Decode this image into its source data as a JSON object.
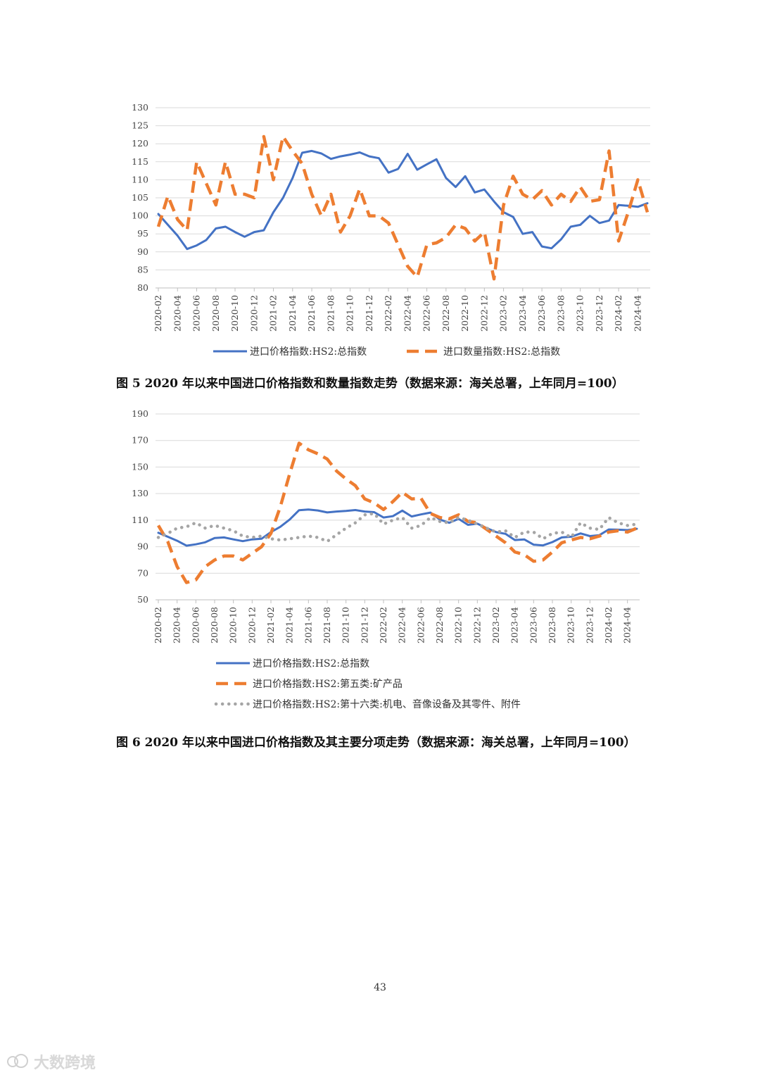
{
  "chart_data": [
    {
      "type": "line",
      "title": "",
      "xlabel": "",
      "ylabel": "",
      "ylim": [
        80,
        130
      ],
      "yticks": [
        80,
        85,
        90,
        95,
        100,
        105,
        110,
        115,
        120,
        125,
        130
      ],
      "grid": true,
      "legend_position": "bottom",
      "x": [
        "2020-02",
        "2020-03",
        "2020-04",
        "2020-05",
        "2020-06",
        "2020-07",
        "2020-08",
        "2020-09",
        "2020-10",
        "2020-11",
        "2020-12",
        "2021-01",
        "2021-02",
        "2021-03",
        "2021-04",
        "2021-05",
        "2021-06",
        "2021-07",
        "2021-08",
        "2021-09",
        "2021-10",
        "2021-11",
        "2021-12",
        "2022-01",
        "2022-02",
        "2022-03",
        "2022-04",
        "2022-05",
        "2022-06",
        "2022-07",
        "2022-08",
        "2022-09",
        "2022-10",
        "2022-11",
        "2022-12",
        "2023-01",
        "2023-02",
        "2023-03",
        "2023-04",
        "2023-05",
        "2023-06",
        "2023-07",
        "2023-08",
        "2023-09",
        "2023-10",
        "2023-11",
        "2023-12",
        "2024-01",
        "2024-02",
        "2024-03",
        "2024-04",
        "2024-05"
      ],
      "x_tick_labels": [
        "2020-02",
        "2020-04",
        "2020-06",
        "2020-08",
        "2020-10",
        "2020-12",
        "2021-02",
        "2021-04",
        "2021-06",
        "2021-08",
        "2021-10",
        "2021-12",
        "2022-02",
        "2022-04",
        "2022-06",
        "2022-08",
        "2022-10",
        "2022-12",
        "2023-02",
        "2023-04",
        "2023-06",
        "2023-08",
        "2023-10",
        "2023-12",
        "2024-02",
        "2024-04"
      ],
      "series": [
        {
          "name": "进口价格指数:HS2:总指数",
          "style": "solid",
          "color": "#4472C4",
          "values": [
            100.5,
            97.5,
            94.5,
            90.8,
            91.8,
            93.3,
            96.5,
            97.0,
            95.5,
            94.2,
            95.5,
            96.0,
            101.0,
            105.0,
            110.5,
            117.5,
            118.0,
            117.3,
            115.8,
            116.5,
            117.0,
            117.6,
            116.5,
            116.0,
            112.0,
            113.0,
            117.2,
            112.8,
            114.3,
            115.7,
            110.5,
            108.0,
            111.0,
            106.5,
            107.3,
            104.0,
            101.0,
            99.7,
            95.0,
            95.5,
            91.5,
            91.0,
            93.5,
            97.0,
            97.5,
            100.0,
            98.0,
            98.7,
            103.0,
            102.8,
            102.5,
            103.5
          ]
        },
        {
          "name": "进口数量指数:HS2:总指数",
          "style": "dashed",
          "color": "#ED7D31",
          "values": [
            97.0,
            105.5,
            99.0,
            96.0,
            115.0,
            109.0,
            103.0,
            115.0,
            106.0,
            106.0,
            105.0,
            122.0,
            110.0,
            122.0,
            118.0,
            114.5,
            106.0,
            100.0,
            106.0,
            95.5,
            100.0,
            107.5,
            100.0,
            100.0,
            98.0,
            92.0,
            86.0,
            83.0,
            92.0,
            92.5,
            94.0,
            97.5,
            96.5,
            93.0,
            95.5,
            82.5,
            103.0,
            111.0,
            106.0,
            104.5,
            107.0,
            103.0,
            106.0,
            104.0,
            108.0,
            104.0,
            104.5,
            118.0,
            93.0,
            101.0,
            110.0,
            101.0
          ]
        }
      ],
      "caption": "图 5 2020 年以来中国进口价格指数和数量指数走势（数据来源：海关总署，上年同月=100）"
    },
    {
      "type": "line",
      "title": "",
      "xlabel": "",
      "ylabel": "",
      "ylim": [
        50,
        190
      ],
      "yticks": [
        50,
        70,
        90,
        110,
        130,
        150,
        170,
        190
      ],
      "grid": true,
      "legend_position": "bottom",
      "x": [
        "2020-02",
        "2020-03",
        "2020-04",
        "2020-05",
        "2020-06",
        "2020-07",
        "2020-08",
        "2020-09",
        "2020-10",
        "2020-11",
        "2020-12",
        "2021-01",
        "2021-02",
        "2021-03",
        "2021-04",
        "2021-05",
        "2021-06",
        "2021-07",
        "2021-08",
        "2021-09",
        "2021-10",
        "2021-11",
        "2021-12",
        "2022-01",
        "2022-02",
        "2022-03",
        "2022-04",
        "2022-05",
        "2022-06",
        "2022-07",
        "2022-08",
        "2022-09",
        "2022-10",
        "2022-11",
        "2022-12",
        "2023-01",
        "2023-02",
        "2023-03",
        "2023-04",
        "2023-05",
        "2023-06",
        "2023-07",
        "2023-08",
        "2023-09",
        "2023-10",
        "2023-11",
        "2023-12",
        "2024-01",
        "2024-02",
        "2024-03",
        "2024-04",
        "2024-05"
      ],
      "x_tick_labels": [
        "2020-02",
        "2020-04",
        "2020-06",
        "2020-08",
        "2020-10",
        "2020-12",
        "2021-02",
        "2021-04",
        "2021-06",
        "2021-08",
        "2021-10",
        "2021-12",
        "2022-02",
        "2022-04",
        "2022-06",
        "2022-08",
        "2022-10",
        "2022-12",
        "2023-02",
        "2023-04",
        "2023-06",
        "2023-08",
        "2023-10",
        "2023-12",
        "2024-02",
        "2024-04"
      ],
      "series": [
        {
          "name": "进口价格指数:HS2:总指数",
          "style": "solid",
          "color": "#4472C4",
          "values": [
            100.5,
            97.5,
            94.5,
            90.8,
            91.8,
            93.3,
            96.5,
            97.0,
            95.5,
            94.2,
            95.5,
            96.0,
            101.0,
            105.0,
            110.5,
            117.5,
            118.0,
            117.3,
            115.8,
            116.5,
            117.0,
            117.6,
            116.5,
            116.0,
            112.0,
            113.0,
            117.2,
            112.8,
            114.3,
            115.7,
            110.5,
            108.0,
            111.0,
            106.5,
            107.3,
            104.0,
            101.0,
            99.7,
            95.0,
            95.5,
            91.5,
            91.0,
            93.5,
            97.0,
            97.5,
            100.0,
            98.0,
            98.7,
            103.0,
            102.8,
            102.5,
            103.5
          ]
        },
        {
          "name": "进口价格指数:HS2:第五类:矿产品",
          "style": "dashed",
          "color": "#ED7D31",
          "values": [
            106.0,
            94.0,
            75.0,
            63.0,
            65.0,
            75.0,
            80.0,
            83.0,
            83.0,
            80.0,
            85.0,
            90.0,
            100.0,
            120.0,
            145.0,
            168.0,
            163.0,
            160.0,
            156.0,
            147.0,
            141.0,
            136.0,
            126.0,
            123.0,
            118.0,
            124.0,
            131.0,
            126.0,
            126.5,
            115.0,
            112.0,
            111.0,
            114.0,
            109.0,
            108.0,
            103.0,
            98.0,
            93.0,
            86.0,
            84.0,
            79.0,
            80.0,
            86.0,
            93.0,
            95.0,
            97.0,
            96.0,
            98.0,
            101.0,
            102.0,
            101.0,
            104.0
          ]
        },
        {
          "name": "进口价格指数:HS2:第十六类:机电、音像设备及其零件、附件",
          "style": "dotted",
          "color": "#A5A5A5",
          "values": [
            97.0,
            100.0,
            104.0,
            105.0,
            108.0,
            104.0,
            106.0,
            104.0,
            102.0,
            98.0,
            97.0,
            98.0,
            96.0,
            95.0,
            96.0,
            97.0,
            98.0,
            97.0,
            94.0,
            99.0,
            104.0,
            108.0,
            114.0,
            115.0,
            107.0,
            110.0,
            112.0,
            104.0,
            106.0,
            112.0,
            109.0,
            108.0,
            112.0,
            110.0,
            107.0,
            104.0,
            101.0,
            102.0,
            97.0,
            101.0,
            101.0,
            96.0,
            100.0,
            101.0,
            97.0,
            108.0,
            104.0,
            103.0,
            112.0,
            108.0,
            106.0,
            107.0
          ]
        }
      ],
      "caption": "图 6 2020 年以来中国进口价格指数及其主要分项走势（数据来源：海关总署，上年同月=100）"
    }
  ],
  "page": {
    "number": "43",
    "watermark": "大数跨境"
  }
}
